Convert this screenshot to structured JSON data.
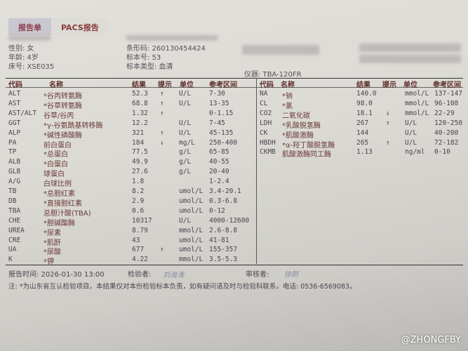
{
  "tabs": [
    {
      "label": "报告单",
      "active": true
    },
    {
      "label": "PACS报告",
      "active": false
    }
  ],
  "patient": {
    "gender": "性别: 女",
    "age": "年龄: 4岁",
    "bed": "床号: XSE035",
    "barcode": "条形码: 260130454424",
    "sample_no": "标本号: 53",
    "sample_type": "标本类型: 血清",
    "instrument": "仪器: TBA-120FR"
  },
  "columns": {
    "code": "代码",
    "name": "名称",
    "result": "结果",
    "hint": "提示",
    "unit": "单位",
    "range": "参考区间"
  },
  "left_rows": [
    {
      "code": "ALT",
      "name": "*谷丙转氨酶",
      "result": "52.3",
      "hint": "↑",
      "unit": "U/L",
      "range": "7-30"
    },
    {
      "code": "AST",
      "name": "*谷草转氨酶",
      "result": "68.8",
      "hint": "↑",
      "unit": "U/L",
      "range": "13-35"
    },
    {
      "code": "AST/ALT",
      "name": "谷草/谷丙",
      "result": "1.32",
      "hint": "↑",
      "unit": "",
      "range": "0-1.15"
    },
    {
      "code": "GGT",
      "name": "*γ-谷氨酰基转移酶",
      "result": "12.2",
      "hint": "",
      "unit": "U/L",
      "range": "7-45"
    },
    {
      "code": "ALP",
      "name": "*碱性磷酸酶",
      "result": "321",
      "hint": "↑",
      "unit": "U/L",
      "range": "45-135"
    },
    {
      "code": "PA",
      "name": "前白蛋白",
      "result": "184",
      "hint": "↓",
      "unit": "mg/L",
      "range": "250-400"
    },
    {
      "code": "TP",
      "name": "*总蛋白",
      "result": "77.5",
      "hint": "",
      "unit": "g/L",
      "range": "65-85"
    },
    {
      "code": "ALB",
      "name": "*白蛋白",
      "result": "49.9",
      "hint": "",
      "unit": "g/L",
      "range": "40-55"
    },
    {
      "code": "GLB",
      "name": "球蛋白",
      "result": "27.6",
      "hint": "",
      "unit": "g/L",
      "range": "20-40"
    },
    {
      "code": "A/G",
      "name": "白球比例",
      "result": "1.8",
      "hint": "",
      "unit": "",
      "range": "1-2.4"
    },
    {
      "code": "TB",
      "name": "*总胆红素",
      "result": "8.2",
      "hint": "",
      "unit": "umol/L",
      "range": "3.4-20.1"
    },
    {
      "code": "DB",
      "name": "*直接胆红素",
      "result": "2.9",
      "hint": "",
      "unit": "umol/L",
      "range": "0.3-6.8"
    },
    {
      "code": "TBA",
      "name": "总胆汁酸(TBA)",
      "result": "0.6",
      "hint": "",
      "unit": "umol/L",
      "range": "0-12"
    },
    {
      "code": "CHE",
      "name": "*胆碱酯酶",
      "result": "10317",
      "hint": "",
      "unit": "U/L",
      "range": "4000-12600"
    },
    {
      "code": "UREA",
      "name": "*尿素",
      "result": "8.79",
      "hint": "",
      "unit": "mmol/L",
      "range": "2.6-8.8"
    },
    {
      "code": "CRE",
      "name": "*肌酐",
      "result": "43",
      "hint": "",
      "unit": "umol/L",
      "range": "41-81"
    },
    {
      "code": "UA",
      "name": "*尿酸",
      "result": "677",
      "hint": "↑",
      "unit": "umol/L",
      "range": "155-357"
    },
    {
      "code": "K",
      "name": "*钾",
      "result": "4.22",
      "hint": "",
      "unit": "mmol/L",
      "range": "3.5-5.3"
    }
  ],
  "right_rows": [
    {
      "code": "NA",
      "name": "*钠",
      "result": "140.0",
      "hint": "",
      "unit": "mmol/L",
      "range": "137-147"
    },
    {
      "code": "CL",
      "name": "*氯",
      "result": "98.0",
      "hint": "",
      "unit": "mmol/L",
      "range": "96-108"
    },
    {
      "code": "CO2",
      "name": "二氧化碳",
      "result": "18.1",
      "hint": "↓",
      "unit": "mmol/L",
      "range": "22-29"
    },
    {
      "code": "LDH",
      "name": "*乳酸脱氢酶",
      "result": "267",
      "hint": "↑",
      "unit": "U/L",
      "range": "120-250"
    },
    {
      "code": "CK",
      "name": "*肌酸激酶",
      "result": "144",
      "hint": "",
      "unit": "U/L",
      "range": "40-200"
    },
    {
      "code": "HBDH",
      "name": "*α-羟丁酸脱氢酶",
      "result": "265",
      "hint": "↑",
      "unit": "U/L",
      "range": "72-182"
    },
    {
      "code": "CKMB",
      "name": "肌酸激酶同工酶",
      "result": "1.13",
      "hint": "",
      "unit": "ng/ml",
      "range": "0-10"
    }
  ],
  "footer": {
    "report_time": "报告时间: 2026-01-30 13:00",
    "tester_label": "检验者:",
    "tester_sig": "刘海涛",
    "reviewer_label": "审核者:",
    "reviewer_sig": "徐刚",
    "note": "注: *为山东省互认检验项目。本结果仅对本份检验标本负责，如有疑问请及时与检验科联系，电话: 0536-6569083。"
  },
  "watermark": "@ZHONGFBY"
}
